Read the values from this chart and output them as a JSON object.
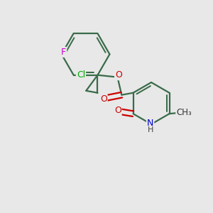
{
  "background_color": "#e8e8e8",
  "bond_color": "#3a6b4a",
  "atom_colors": {
    "F": "#cc00cc",
    "Cl": "#00aa00",
    "O": "#cc0000",
    "N": "#0000cc",
    "C": "#3a6b4a"
  },
  "figsize": [
    3.0,
    3.0
  ],
  "dpi": 100
}
